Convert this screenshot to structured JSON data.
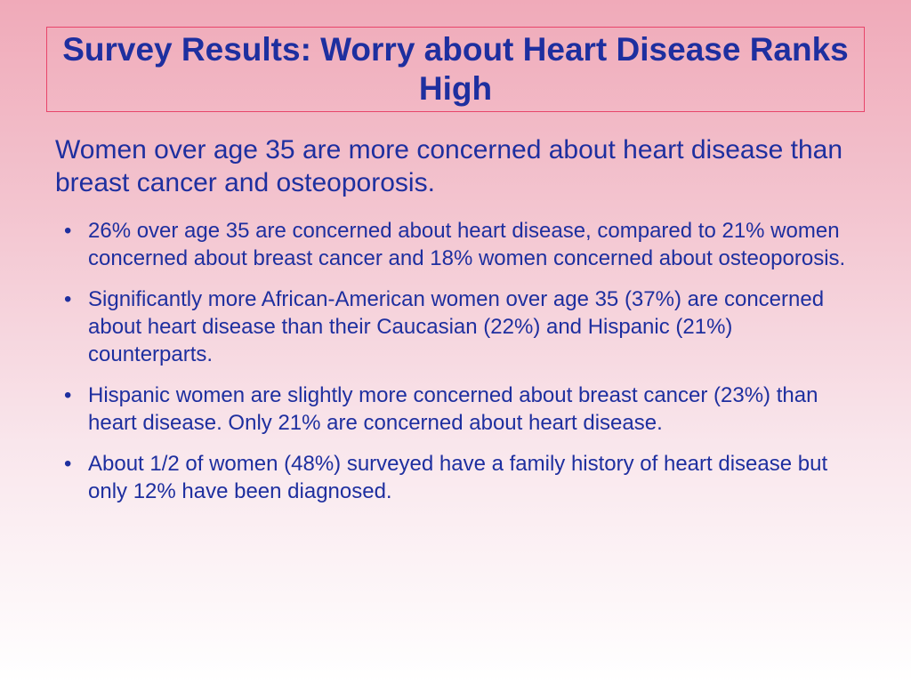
{
  "slide": {
    "title": "Survey Results: Worry about Heart Disease Ranks High",
    "intro": "Women over age 35 are more concerned about heart disease than breast cancer and osteoporosis.",
    "bullet_glyph": "•",
    "bullets": [
      "26% over age 35 are concerned about heart disease, compared to 21% women concerned about breast cancer and 18% women concerned about osteoporosis.",
      "Significantly more African-American women over age 35 (37%) are concerned about heart disease than their Caucasian (22%) and Hispanic (21%) counterparts.",
      "Hispanic women are slightly more concerned about breast cancer (23%) than heart disease. Only 21% are concerned about heart disease.",
      "About 1/2 of women (48%) surveyed have a family history of heart disease but only 12% have been diagnosed."
    ]
  },
  "colors": {
    "text": "#1e2f9f",
    "title_border": "#e8456a",
    "background_top": "#f0aab9",
    "background_bottom": "#ffffff"
  }
}
